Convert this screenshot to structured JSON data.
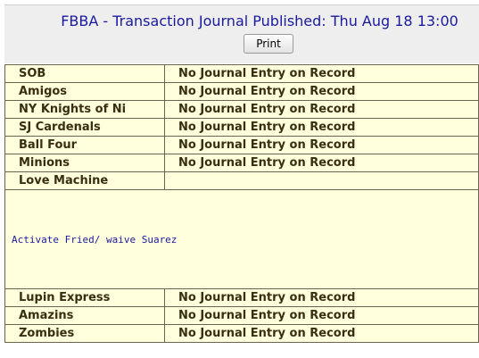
{
  "header": {
    "title": "FBBA  -  Transaction Journal Published: Thu Aug 18 13:00",
    "print_label": "Print"
  },
  "rows_top": [
    {
      "team": "SOB",
      "entry": "No Journal Entry on Record"
    },
    {
      "team": "Amigos",
      "entry": "No Journal Entry on Record"
    },
    {
      "team": "NY Knights of Ni",
      "entry": "No Journal Entry on Record"
    },
    {
      "team": "SJ Cardenals",
      "entry": "No Journal Entry on Record"
    },
    {
      "team": "Ball Four",
      "entry": "No Journal Entry on Record"
    },
    {
      "team": "Minions",
      "entry": "No Journal Entry on Record"
    },
    {
      "team": "Love Machine",
      "entry": ""
    }
  ],
  "love_machine_note": "Activate Fried/ waive Suarez",
  "rows_bottom": [
    {
      "team": "Lupin Express",
      "entry": "No Journal Entry on Record"
    },
    {
      "team": "Amazins",
      "entry": "No Journal Entry on Record"
    },
    {
      "team": "Zombies",
      "entry": "No Journal Entry on Record"
    }
  ]
}
